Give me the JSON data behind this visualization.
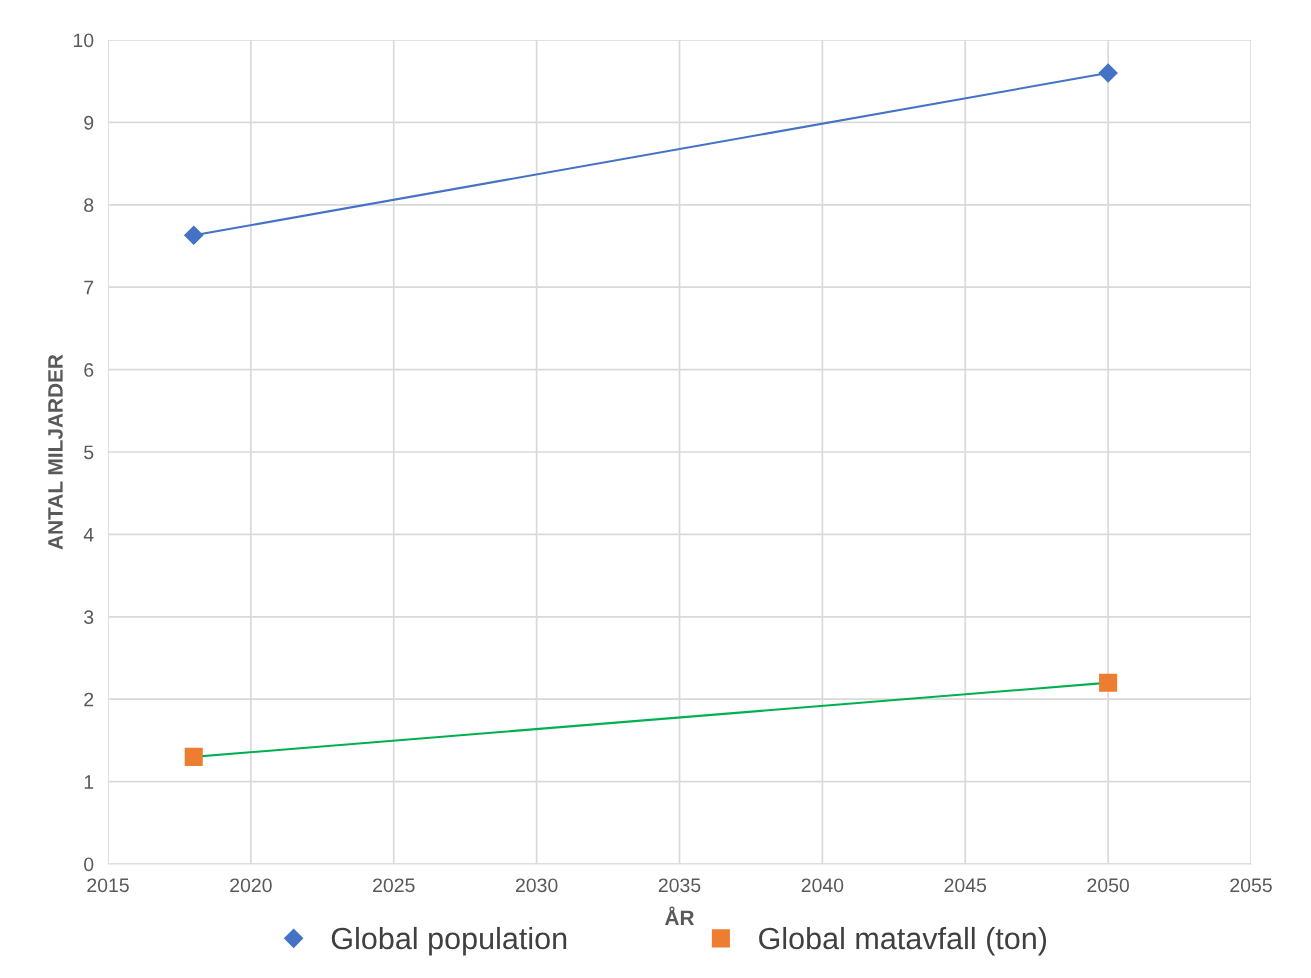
{
  "chart_data": {
    "type": "line",
    "x": [
      2018,
      2050
    ],
    "series": [
      {
        "name": "Global population",
        "color": "#4472c4",
        "colors": [
          "#4472c4",
          "#4472c4"
        ],
        "marker": "diamond",
        "values": [
          7.63,
          9.6
        ]
      },
      {
        "name": "Global matavfall (ton)",
        "color": "#00b050",
        "colors": [
          "#ed7d31",
          "#ed7d31"
        ],
        "marker": "square",
        "values": [
          1.3,
          2.2
        ]
      }
    ],
    "xlabel": "ÅR",
    "ylabel": "ANTAL MILJARDER",
    "xlim": [
      2015,
      2055
    ],
    "xticks": [
      2015,
      2020,
      2025,
      2030,
      2035,
      2040,
      2045,
      2050,
      2055
    ],
    "ylim": [
      0,
      10
    ],
    "yticks": [
      0,
      1,
      2,
      3,
      4,
      5,
      6,
      7,
      8,
      9,
      10
    ],
    "grid": true,
    "legend": "bottom",
    "line_style": "solid"
  }
}
